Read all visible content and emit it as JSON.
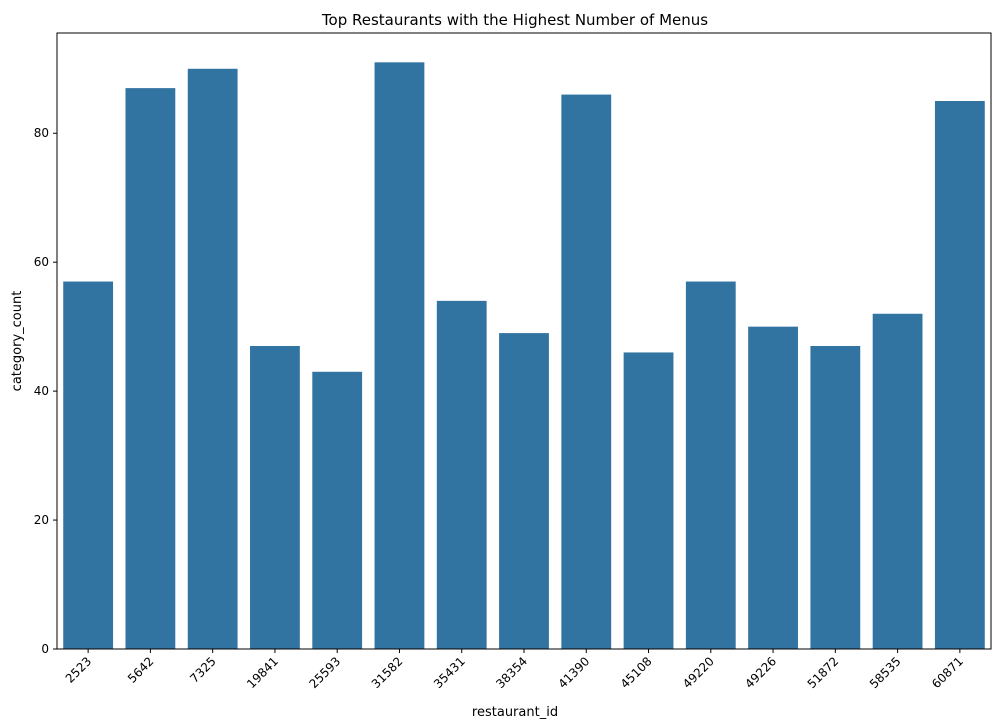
{
  "chart_data": {
    "type": "bar",
    "title": "Top Restaurants with the Highest Number of Menus",
    "xlabel": "restaurant_id",
    "ylabel": "category_count",
    "categories": [
      "2523",
      "5642",
      "7325",
      "19841",
      "25593",
      "31582",
      "35431",
      "38354",
      "41390",
      "45108",
      "49220",
      "49226",
      "51872",
      "58535",
      "60871"
    ],
    "values": [
      57,
      87,
      90,
      47,
      43,
      91,
      54,
      49,
      86,
      46,
      57,
      50,
      47,
      52,
      85
    ],
    "ylim": [
      0,
      95.55
    ],
    "yticks": [
      0,
      20,
      40,
      60,
      80
    ],
    "x_tick_rotation": 45,
    "grid": false,
    "bar_color": "#3274a1"
  }
}
